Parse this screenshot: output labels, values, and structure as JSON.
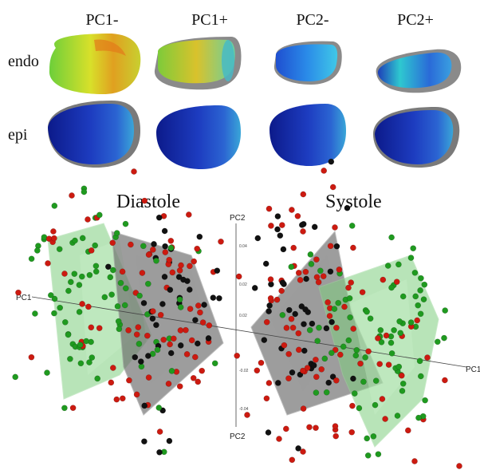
{
  "columns": [
    "PC1-",
    "PC1+",
    "PC2-",
    "PC2+"
  ],
  "rows": [
    "endo",
    "epi"
  ],
  "panels": [
    "Diastole",
    "Systole"
  ],
  "axes": {
    "pc1": "PC1",
    "pc2": "PC2"
  },
  "ticks": [
    "0.04",
    "0.02",
    "0.02",
    "-0.02",
    "-0.04"
  ],
  "point_colors": {
    "red": "#cc1a10",
    "green": "#1f9a1f",
    "black": "#111111"
  },
  "hull_colors": {
    "green": "#7fcf7f",
    "gray": "#6a6a6a"
  }
}
